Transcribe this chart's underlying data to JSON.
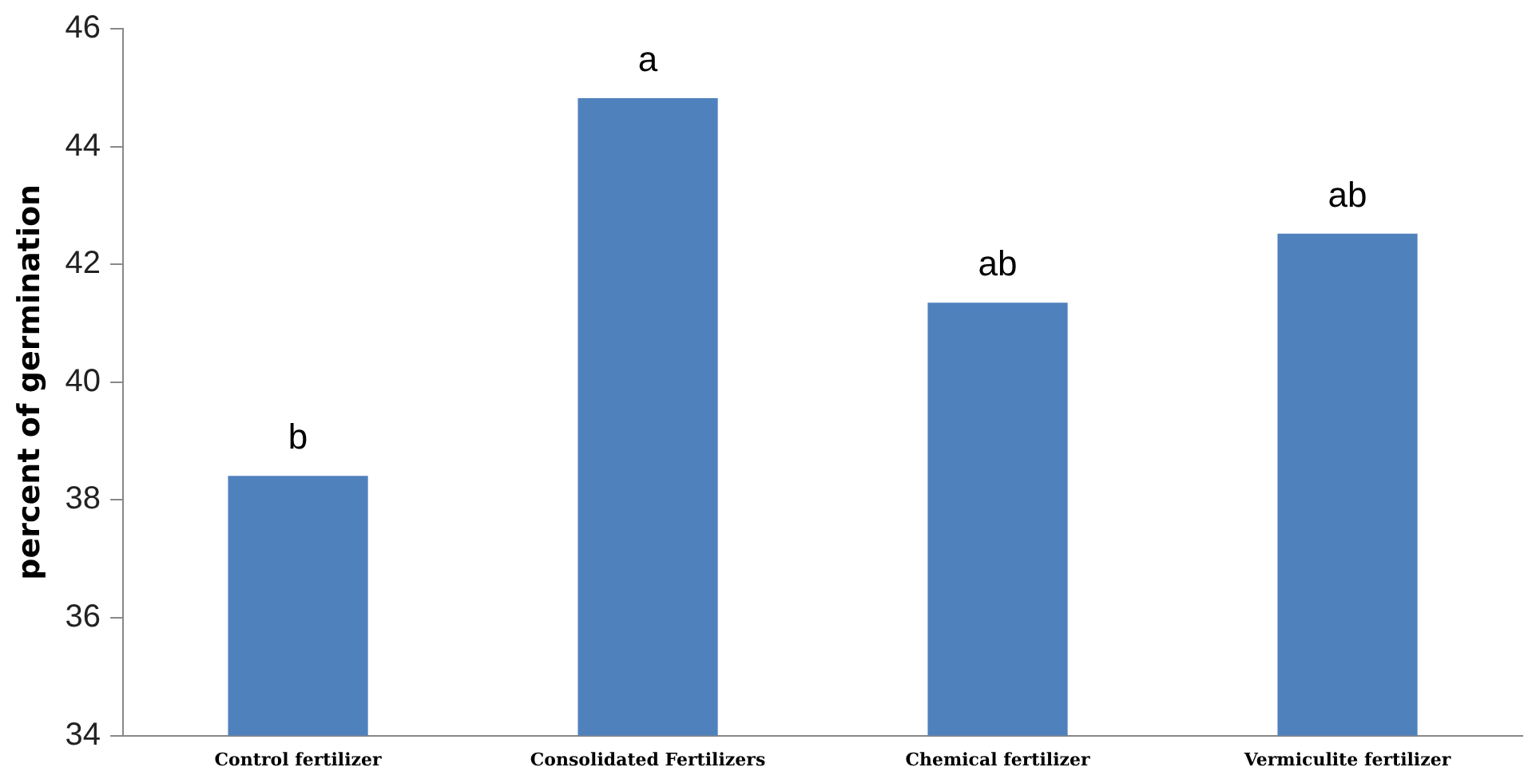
{
  "chart_data": {
    "type": "bar",
    "ylabel": "percent of germination",
    "categories": [
      "Control fertilizer",
      "Consolidated Fertilizers",
      "Chemical fertilizer",
      "Vermiculite fertilizer"
    ],
    "values": [
      38.41,
      44.82,
      41.35,
      42.52
    ],
    "color": "#4f81bd",
    "ylim": [
      34,
      46
    ],
    "yticks": [
      34,
      36,
      38,
      40,
      42,
      44,
      46
    ],
    "grid": false,
    "legend": false,
    "annotations": [
      {
        "text": "b",
        "x": "Control fertilizer",
        "y": 38.41
      },
      {
        "text": "a",
        "x": "Consolidated Fertilizers",
        "y": 44.82
      },
      {
        "text": "ab",
        "x": "Chemical fertilizer",
        "y": 41.35
      },
      {
        "text": "ab",
        "x": "Vermiculite fertilizer",
        "y": 42.52
      }
    ]
  }
}
